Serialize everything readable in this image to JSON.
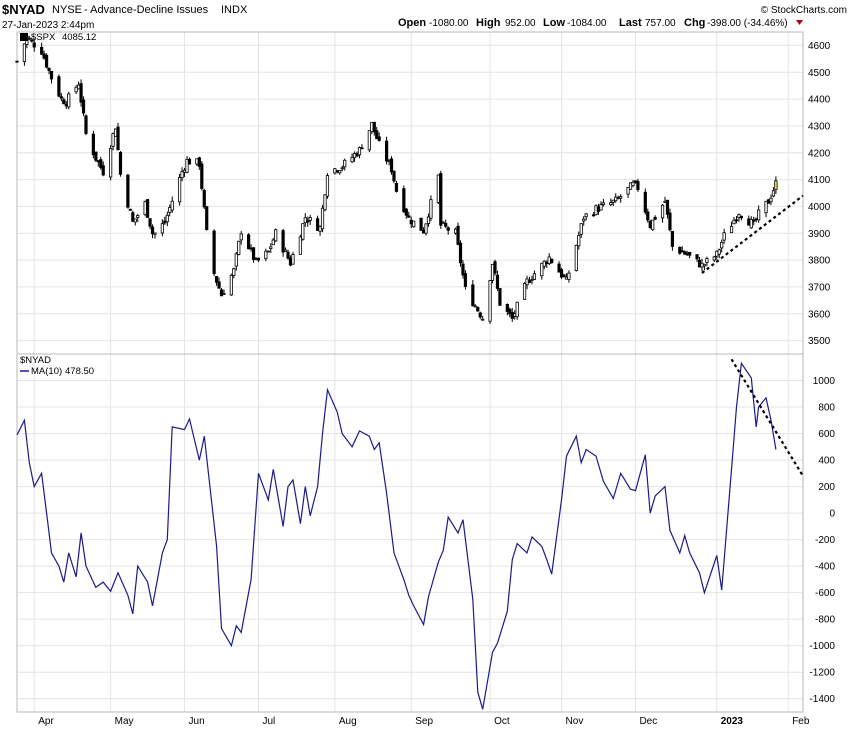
{
  "header": {
    "symbol": "$NYAD",
    "exchange": "NYSE",
    "description": "- Advance-Decline Issues",
    "asset_type": "INDX",
    "datetime": "27-Jan-2023 2:44pm",
    "open_label": "Open",
    "open_value": "-1080.00",
    "high_label": "High",
    "high_value": "952.00",
    "low_label": "Low",
    "low_value": "-1084.00",
    "last_label": "Last",
    "last_value": "757.00",
    "chg_label": "Chg",
    "chg_value": "-398.00 (-34.46%)",
    "watermark": "© StockCharts.com"
  },
  "upper_panel": {
    "legend_symbol": "$SPX",
    "legend_value": "4085.12"
  },
  "lower_panel": {
    "legend_symbol": "$NYAD",
    "legend_ma": "MA(10)",
    "legend_ma_value": "478.50"
  },
  "colors": {
    "candle": "#000000",
    "last_candle": "#f2e94e",
    "ma_line": "#1a1a8c",
    "trendline": "#000000",
    "chg_down_arrow": "#c00000"
  },
  "chart_data": [
    {
      "type": "candlestick",
      "series": [
        {
          "name": "$SPX"
        }
      ],
      "ylim": [
        3450,
        4650
      ],
      "yticks": [
        3500,
        3600,
        3700,
        3800,
        3900,
        4000,
        4100,
        4200,
        4300,
        4400,
        4500,
        4600
      ],
      "x_tick_labels": [
        "Apr",
        "May",
        "Jun",
        "Jul",
        "Aug",
        "Sep",
        "Oct",
        "Nov",
        "Dec",
        "2023",
        "Feb"
      ],
      "x_tick_dates": [
        "2022-04-01",
        "2022-05-02",
        "2022-06-01",
        "2022-07-01",
        "2022-08-01",
        "2022-09-01",
        "2022-10-03",
        "2022-11-01",
        "2022-12-01",
        "2023-01-03",
        "2023-02-01"
      ],
      "x_range": [
        "2022-03-25",
        "2023-02-07"
      ],
      "close_points": [
        [
          "2022-03-25",
          4540
        ],
        [
          "2022-03-29",
          4630
        ],
        [
          "2022-04-04",
          4580
        ],
        [
          "2022-04-08",
          4480
        ],
        [
          "2022-04-12",
          4400
        ],
        [
          "2022-04-14",
          4390
        ],
        [
          "2022-04-19",
          4460
        ],
        [
          "2022-04-22",
          4270
        ],
        [
          "2022-04-26",
          4180
        ],
        [
          "2022-04-29",
          4130
        ],
        [
          "2022-05-04",
          4300
        ],
        [
          "2022-05-06",
          4120
        ],
        [
          "2022-05-11",
          3940
        ],
        [
          "2022-05-16",
          4010
        ],
        [
          "2022-05-19",
          3900
        ],
        [
          "2022-05-20",
          3900
        ],
        [
          "2022-05-24",
          3940
        ],
        [
          "2022-05-31",
          4130
        ],
        [
          "2022-06-02",
          4170
        ],
        [
          "2022-06-07",
          4160
        ],
        [
          "2022-06-10",
          3900
        ],
        [
          "2022-06-13",
          3750
        ],
        [
          "2022-06-16",
          3670
        ],
        [
          "2022-06-21",
          3760
        ],
        [
          "2022-06-24",
          3910
        ],
        [
          "2022-06-30",
          3790
        ],
        [
          "2022-07-05",
          3830
        ],
        [
          "2022-07-08",
          3900
        ],
        [
          "2022-07-14",
          3790
        ],
        [
          "2022-07-20",
          3960
        ],
        [
          "2022-07-26",
          3920
        ],
        [
          "2022-07-29",
          4130
        ],
        [
          "2022-08-04",
          4150
        ],
        [
          "2022-08-11",
          4210
        ],
        [
          "2022-08-16",
          4305
        ],
        [
          "2022-08-19",
          4230
        ],
        [
          "2022-08-24",
          4140
        ],
        [
          "2022-08-26",
          4060
        ],
        [
          "2022-08-31",
          3955
        ],
        [
          "2022-09-06",
          3910
        ],
        [
          "2022-09-12",
          4110
        ],
        [
          "2022-09-13",
          3930
        ],
        [
          "2022-09-19",
          3900
        ],
        [
          "2022-09-23",
          3690
        ],
        [
          "2022-09-30",
          3585
        ],
        [
          "2022-10-04",
          3790
        ],
        [
          "2022-10-07",
          3640
        ],
        [
          "2022-10-12",
          3580
        ],
        [
          "2022-10-18",
          3720
        ],
        [
          "2022-10-21",
          3750
        ],
        [
          "2022-10-27",
          3810
        ],
        [
          "2022-11-03",
          3720
        ],
        [
          "2022-11-10",
          3960
        ],
        [
          "2022-11-15",
          3990
        ],
        [
          "2022-11-23",
          4020
        ],
        [
          "2022-11-30",
          4080
        ],
        [
          "2022-12-02",
          4070
        ],
        [
          "2022-12-07",
          3930
        ],
        [
          "2022-12-13",
          4020
        ],
        [
          "2022-12-16",
          3850
        ],
        [
          "2022-12-22",
          3820
        ],
        [
          "2022-12-28",
          3780
        ],
        [
          "2023-01-03",
          3820
        ],
        [
          "2023-01-06",
          3890
        ],
        [
          "2023-01-12",
          3980
        ],
        [
          "2023-01-18",
          3930
        ],
        [
          "2023-01-20",
          3970
        ],
        [
          "2023-01-24",
          4020
        ],
        [
          "2023-01-27",
          4085
        ]
      ],
      "trendline_label": "",
      "last_value": 4085.12
    },
    {
      "type": "line",
      "series": [
        {
          "name": "MA(10)"
        }
      ],
      "ylim": [
        -1500,
        1200
      ],
      "yticks": [
        -1400,
        -1200,
        -1000,
        -800,
        -600,
        -400,
        -200,
        0,
        200,
        400,
        600,
        800,
        1000
      ],
      "points": [
        [
          "2022-03-25",
          590
        ],
        [
          "2022-03-28",
          700
        ],
        [
          "2022-03-30",
          380
        ],
        [
          "2022-04-01",
          200
        ],
        [
          "2022-04-04",
          300
        ],
        [
          "2022-04-06",
          0
        ],
        [
          "2022-04-08",
          -300
        ],
        [
          "2022-04-11",
          -400
        ],
        [
          "2022-04-13",
          -520
        ],
        [
          "2022-04-15",
          -300
        ],
        [
          "2022-04-18",
          -480
        ],
        [
          "2022-04-20",
          -150
        ],
        [
          "2022-04-22",
          -400
        ],
        [
          "2022-04-26",
          -560
        ],
        [
          "2022-04-29",
          -520
        ],
        [
          "2022-05-02",
          -590
        ],
        [
          "2022-05-05",
          -450
        ],
        [
          "2022-05-09",
          -620
        ],
        [
          "2022-05-11",
          -760
        ],
        [
          "2022-05-13",
          -400
        ],
        [
          "2022-05-17",
          -520
        ],
        [
          "2022-05-19",
          -700
        ],
        [
          "2022-05-23",
          -300
        ],
        [
          "2022-05-25",
          -200
        ],
        [
          "2022-05-27",
          650
        ],
        [
          "2022-06-01",
          630
        ],
        [
          "2022-06-03",
          710
        ],
        [
          "2022-06-07",
          400
        ],
        [
          "2022-06-09",
          580
        ],
        [
          "2022-06-14",
          -250
        ],
        [
          "2022-06-16",
          -870
        ],
        [
          "2022-06-20",
          -1000
        ],
        [
          "2022-06-22",
          -850
        ],
        [
          "2022-06-24",
          -900
        ],
        [
          "2022-06-28",
          -500
        ],
        [
          "2022-07-01",
          300
        ],
        [
          "2022-07-05",
          100
        ],
        [
          "2022-07-07",
          330
        ],
        [
          "2022-07-11",
          -100
        ],
        [
          "2022-07-13",
          200
        ],
        [
          "2022-07-15",
          250
        ],
        [
          "2022-07-18",
          -80
        ],
        [
          "2022-07-20",
          200
        ],
        [
          "2022-07-22",
          -20
        ],
        [
          "2022-07-25",
          200
        ],
        [
          "2022-07-27",
          600
        ],
        [
          "2022-07-29",
          930
        ],
        [
          "2022-08-02",
          760
        ],
        [
          "2022-08-04",
          600
        ],
        [
          "2022-08-08",
          500
        ],
        [
          "2022-08-11",
          620
        ],
        [
          "2022-08-15",
          580
        ],
        [
          "2022-08-17",
          480
        ],
        [
          "2022-08-19",
          530
        ],
        [
          "2022-08-22",
          150
        ],
        [
          "2022-08-25",
          -300
        ],
        [
          "2022-08-29",
          -500
        ],
        [
          "2022-08-31",
          -620
        ],
        [
          "2022-09-02",
          -700
        ],
        [
          "2022-09-06",
          -840
        ],
        [
          "2022-09-08",
          -630
        ],
        [
          "2022-09-12",
          -370
        ],
        [
          "2022-09-14",
          -280
        ],
        [
          "2022-09-16",
          -30
        ],
        [
          "2022-09-20",
          -150
        ],
        [
          "2022-09-22",
          -50
        ],
        [
          "2022-09-26",
          -650
        ],
        [
          "2022-09-28",
          -1350
        ],
        [
          "2022-09-30",
          -1480
        ],
        [
          "2022-10-04",
          -1050
        ],
        [
          "2022-10-06",
          -980
        ],
        [
          "2022-10-10",
          -740
        ],
        [
          "2022-10-12",
          -350
        ],
        [
          "2022-10-14",
          -230
        ],
        [
          "2022-10-18",
          -300
        ],
        [
          "2022-10-20",
          -180
        ],
        [
          "2022-10-24",
          -250
        ],
        [
          "2022-10-26",
          -350
        ],
        [
          "2022-10-28",
          -460
        ],
        [
          "2022-11-01",
          100
        ],
        [
          "2022-11-03",
          430
        ],
        [
          "2022-11-07",
          580
        ],
        [
          "2022-11-09",
          380
        ],
        [
          "2022-11-11",
          480
        ],
        [
          "2022-11-15",
          430
        ],
        [
          "2022-11-18",
          240
        ],
        [
          "2022-11-22",
          110
        ],
        [
          "2022-11-25",
          300
        ],
        [
          "2022-11-29",
          180
        ],
        [
          "2022-12-01",
          170
        ],
        [
          "2022-12-05",
          440
        ],
        [
          "2022-12-07",
          0
        ],
        [
          "2022-12-09",
          130
        ],
        [
          "2022-12-13",
          200
        ],
        [
          "2022-12-15",
          -130
        ],
        [
          "2022-12-19",
          -300
        ],
        [
          "2022-12-21",
          -170
        ],
        [
          "2022-12-23",
          -300
        ],
        [
          "2022-12-27",
          -450
        ],
        [
          "2022-12-29",
          -600
        ],
        [
          "2023-01-03",
          -320
        ],
        [
          "2023-01-05",
          -580
        ],
        [
          "2023-01-09",
          330
        ],
        [
          "2023-01-11",
          800
        ],
        [
          "2023-01-13",
          1130
        ],
        [
          "2023-01-17",
          1020
        ],
        [
          "2023-01-19",
          650
        ],
        [
          "2023-01-20",
          800
        ],
        [
          "2023-01-23",
          870
        ],
        [
          "2023-01-25",
          700
        ],
        [
          "2023-01-27",
          480
        ]
      ],
      "last_value": 478.5
    }
  ]
}
